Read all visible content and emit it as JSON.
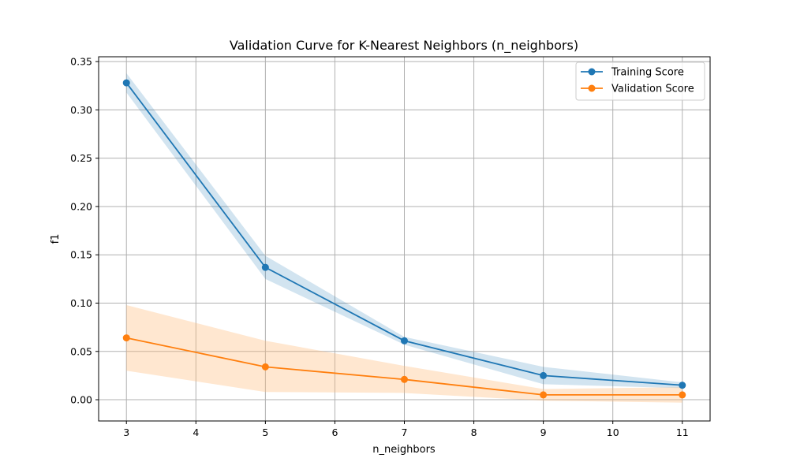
{
  "chart_data": {
    "type": "line",
    "title": "Validation Curve for K-Nearest Neighbors (n_neighbors)",
    "xlabel": "n_neighbors",
    "ylabel": "f1",
    "x": [
      3,
      5,
      7,
      9,
      11
    ],
    "xlim": [
      2.6,
      11.4
    ],
    "ylim": [
      -0.022,
      0.355
    ],
    "xticks": [
      3,
      4,
      5,
      6,
      7,
      8,
      9,
      10,
      11
    ],
    "yticks": [
      0.0,
      0.05,
      0.1,
      0.15,
      0.2,
      0.25,
      0.3,
      0.35
    ],
    "ytick_labels": [
      "0.00",
      "0.05",
      "0.10",
      "0.15",
      "0.20",
      "0.25",
      "0.30",
      "0.35"
    ],
    "grid": true,
    "legend_position": "top-right",
    "series": [
      {
        "name": "Training Score",
        "color": "#1f77b4",
        "band_color": "#1f77b4",
        "values": [
          0.328,
          0.137,
          0.061,
          0.025,
          0.015
        ],
        "lower": [
          0.318,
          0.125,
          0.057,
          0.016,
          0.012
        ],
        "upper": [
          0.338,
          0.149,
          0.065,
          0.034,
          0.018
        ]
      },
      {
        "name": "Validation Score",
        "color": "#ff7f0e",
        "band_color": "#ffbb78",
        "values": [
          0.064,
          0.034,
          0.021,
          0.005,
          0.005
        ],
        "lower": [
          0.03,
          0.008,
          0.007,
          -0.001,
          -0.003
        ],
        "upper": [
          0.098,
          0.061,
          0.035,
          0.011,
          0.013
        ]
      }
    ]
  }
}
